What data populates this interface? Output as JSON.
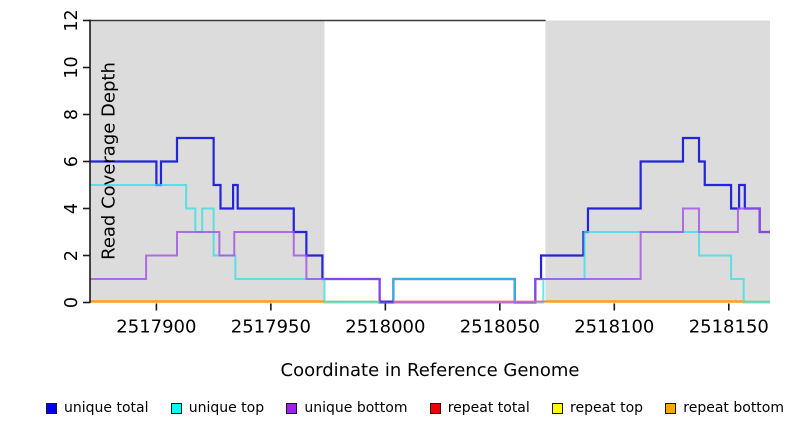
{
  "figure": {
    "y_axis_label": "Read Coverage Depth",
    "x_axis_label": "Coordinate in Reference Genome"
  },
  "legend": {
    "items": [
      {
        "label": "unique total",
        "color": "#0000EE"
      },
      {
        "label": "unique top",
        "color": "#00FFFF"
      },
      {
        "label": "unique bottom",
        "color": "#A020F0"
      },
      {
        "label": "repeat total",
        "color": "#EE0000"
      },
      {
        "label": "repeat top",
        "color": "#FFFF00"
      },
      {
        "label": "repeat bottom",
        "color": "#FFA500"
      }
    ]
  },
  "chart_data": {
    "type": "line",
    "subtype": "step-coverage",
    "title": "",
    "xlabel": "Coordinate in Reference Genome",
    "ylabel": "Read Coverage Depth",
    "xlim": [
      2517871,
      2518168
    ],
    "ylim": [
      0,
      12
    ],
    "x_ticks": [
      2517900,
      2517950,
      2518000,
      2518050,
      2518100,
      2518150
    ],
    "y_ticks": [
      0,
      2,
      4,
      6,
      8,
      10,
      12
    ],
    "grid": false,
    "legend_position": "bottom",
    "shaded_regions": [
      {
        "x0": 2517871,
        "x1": 2517973.4,
        "color": "#DCDCDC"
      },
      {
        "x0": 2518069.9,
        "x1": 2518168,
        "color": "#DCDCDC"
      }
    ],
    "top_border": {
      "x0": 2517871,
      "x1": 2518070,
      "color": "#3b3b3b"
    },
    "series": [
      {
        "name": "unique total",
        "draw": "line",
        "color": "#2424D8",
        "width": 2.2,
        "opacity": 1,
        "points": [
          [
            2517871,
            6
          ],
          [
            2517900,
            5
          ],
          [
            2517902,
            6
          ],
          [
            2517909,
            7
          ],
          [
            2517925,
            5
          ],
          [
            2517928,
            4
          ],
          [
            2517933.5,
            5
          ],
          [
            2517935.5,
            4
          ],
          [
            2517960,
            3
          ],
          [
            2517965.5,
            2
          ],
          [
            2517972.5,
            1
          ],
          [
            2517997.5,
            0
          ],
          [
            2518003.5,
            1
          ],
          [
            2518056.5,
            0
          ],
          [
            2518065.5,
            1
          ],
          [
            2518068,
            2
          ],
          [
            2518086.5,
            3
          ],
          [
            2518088.5,
            4
          ],
          [
            2518111.5,
            6
          ],
          [
            2518130,
            7
          ],
          [
            2518137,
            6
          ],
          [
            2518139.5,
            5
          ],
          [
            2518151,
            4
          ],
          [
            2518154.5,
            5
          ],
          [
            2518157,
            4
          ],
          [
            2518163.5,
            3
          ],
          [
            2518168,
            3
          ]
        ]
      },
      {
        "name": "unique top",
        "draw": "line",
        "color": "#2FE0E8",
        "width": 2,
        "opacity": 0.75,
        "points": [
          [
            2517871,
            5
          ],
          [
            2517913,
            4
          ],
          [
            2517917,
            3
          ],
          [
            2517920,
            4
          ],
          [
            2517925,
            2
          ],
          [
            2517934.5,
            1
          ],
          [
            2517973.4,
            0
          ],
          [
            2518003.5,
            1
          ],
          [
            2518056.5,
            0
          ],
          [
            2518069,
            1
          ],
          [
            2518087,
            3
          ],
          [
            2518137,
            2
          ],
          [
            2518151,
            1
          ],
          [
            2518156.5,
            0
          ],
          [
            2518168,
            0
          ]
        ]
      },
      {
        "name": "unique bottom",
        "draw": "line",
        "color": "#A44DE8",
        "width": 2,
        "opacity": 0.8,
        "points": [
          [
            2517871,
            1
          ],
          [
            2517895.5,
            2
          ],
          [
            2517909,
            3
          ],
          [
            2517927.5,
            2
          ],
          [
            2517934,
            3
          ],
          [
            2517960,
            2
          ],
          [
            2517965.5,
            1
          ],
          [
            2517997.5,
            0
          ],
          [
            2518065.5,
            1
          ],
          [
            2518111.5,
            3
          ],
          [
            2518130,
            4
          ],
          [
            2518137,
            3
          ],
          [
            2518154,
            4
          ],
          [
            2518163.5,
            3
          ],
          [
            2518168,
            3
          ]
        ]
      },
      {
        "name": "repeat total",
        "draw": "baseline",
        "color": "#EE0000",
        "points": [
          [
            2517871,
            0
          ],
          [
            2518168,
            0
          ]
        ]
      },
      {
        "name": "repeat top",
        "draw": "baseline",
        "color": "#FFFF00",
        "points": [
          [
            2517871,
            0
          ],
          [
            2518168,
            0
          ]
        ]
      },
      {
        "name": "repeat bottom",
        "draw": "baseline",
        "color": "#FFA500",
        "points": [
          [
            2517871,
            0
          ],
          [
            2518168,
            0
          ]
        ]
      }
    ],
    "baseline_render": [
      {
        "x0": 2517871,
        "x1": 2517973.4,
        "color": "#FF9E1B",
        "width": 2.5
      },
      {
        "x0": 2517973.4,
        "x1": 2517997.5,
        "color": "#7FCE8E",
        "width": 1.8
      },
      {
        "x0": 2517997.5,
        "x1": 2518003.5,
        "color": "#4438C8",
        "width": 2
      },
      {
        "x0": 2518003.5,
        "x1": 2518070,
        "color": "#E06C85",
        "width": 1.8
      },
      {
        "x0": 2518070,
        "x1": 2518156.5,
        "color": "#FF9E1B",
        "width": 2.5
      },
      {
        "x0": 2518156.5,
        "x1": 2518168,
        "color": "#7FCE8E",
        "width": 1.8
      }
    ]
  }
}
